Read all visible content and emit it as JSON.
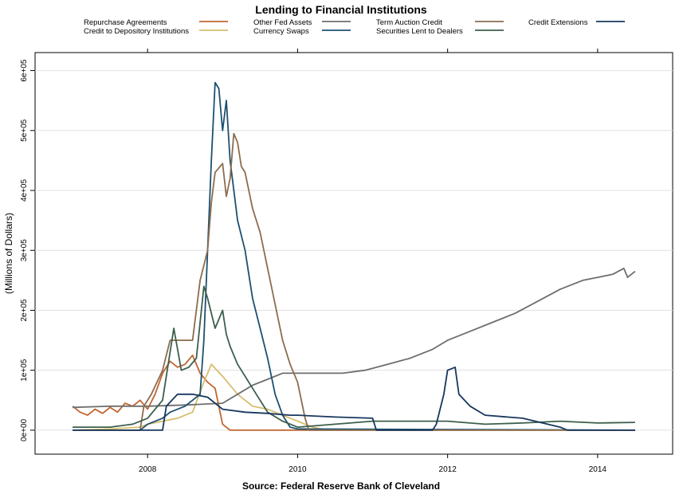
{
  "chart_data": {
    "type": "line",
    "title": "Lending to Financial Institutions",
    "xlabel": "Source: Federal Reserve Bank of Cleveland",
    "ylabel": "(Millions of Dollars)",
    "xlim": [
      2006.5,
      2015.0
    ],
    "ylim": [
      -40000,
      630000
    ],
    "x_ticks": [
      2008,
      2010,
      2012,
      2014
    ],
    "y_ticks": [
      0,
      100000,
      200000,
      300000,
      400000,
      500000,
      600000
    ],
    "y_tick_labels": [
      "0e+00",
      "1e+05",
      "2e+05",
      "3e+05",
      "4e+05",
      "5e+05",
      "6e+05"
    ],
    "grid": "horizontal",
    "legend_position": "top",
    "series": [
      {
        "name": "Repurchase Agreements",
        "color": "#c0652f",
        "points": [
          [
            2007.0,
            40000
          ],
          [
            2007.1,
            30000
          ],
          [
            2007.2,
            25000
          ],
          [
            2007.3,
            35000
          ],
          [
            2007.4,
            28000
          ],
          [
            2007.5,
            38000
          ],
          [
            2007.6,
            30000
          ],
          [
            2007.7,
            45000
          ],
          [
            2007.8,
            40000
          ],
          [
            2007.9,
            50000
          ],
          [
            2008.0,
            35000
          ],
          [
            2008.1,
            60000
          ],
          [
            2008.2,
            95000
          ],
          [
            2008.3,
            115000
          ],
          [
            2008.4,
            105000
          ],
          [
            2008.5,
            110000
          ],
          [
            2008.6,
            125000
          ],
          [
            2008.7,
            95000
          ],
          [
            2008.8,
            80000
          ],
          [
            2008.9,
            70000
          ],
          [
            2009.0,
            10000
          ],
          [
            2009.1,
            0
          ],
          [
            2014.5,
            0
          ]
        ]
      },
      {
        "name": "Credit to Depository Institutions",
        "color": "#d6be6e",
        "points": [
          [
            2007.0,
            0
          ],
          [
            2007.5,
            2000
          ],
          [
            2007.9,
            5000
          ],
          [
            2008.0,
            10000
          ],
          [
            2008.2,
            15000
          ],
          [
            2008.4,
            20000
          ],
          [
            2008.6,
            30000
          ],
          [
            2008.75,
            80000
          ],
          [
            2008.85,
            110000
          ],
          [
            2009.0,
            90000
          ],
          [
            2009.2,
            60000
          ],
          [
            2009.4,
            40000
          ],
          [
            2009.6,
            35000
          ],
          [
            2009.8,
            25000
          ],
          [
            2010.0,
            15000
          ],
          [
            2010.2,
            5000
          ],
          [
            2010.4,
            0
          ],
          [
            2014.5,
            0
          ]
        ]
      },
      {
        "name": "Other Fed Assets",
        "color": "#6e6e6e",
        "points": [
          [
            2007.0,
            38000
          ],
          [
            2007.5,
            40000
          ],
          [
            2008.0,
            40000
          ],
          [
            2008.5,
            42000
          ],
          [
            2009.0,
            45000
          ],
          [
            2009.2,
            60000
          ],
          [
            2009.4,
            75000
          ],
          [
            2009.6,
            85000
          ],
          [
            2009.8,
            95000
          ],
          [
            2010.0,
            95000
          ],
          [
            2010.3,
            95000
          ],
          [
            2010.6,
            95000
          ],
          [
            2010.9,
            100000
          ],
          [
            2011.2,
            110000
          ],
          [
            2011.5,
            120000
          ],
          [
            2011.8,
            135000
          ],
          [
            2012.0,
            150000
          ],
          [
            2012.3,
            165000
          ],
          [
            2012.6,
            180000
          ],
          [
            2012.9,
            195000
          ],
          [
            2013.2,
            215000
          ],
          [
            2013.5,
            235000
          ],
          [
            2013.8,
            250000
          ],
          [
            2014.0,
            255000
          ],
          [
            2014.2,
            260000
          ],
          [
            2014.35,
            270000
          ],
          [
            2014.4,
            255000
          ],
          [
            2014.5,
            265000
          ]
        ]
      },
      {
        "name": "Currency Swaps",
        "color": "#1e5070",
        "points": [
          [
            2007.0,
            0
          ],
          [
            2007.9,
            0
          ],
          [
            2008.0,
            10000
          ],
          [
            2008.2,
            20000
          ],
          [
            2008.3,
            30000
          ],
          [
            2008.5,
            40000
          ],
          [
            2008.7,
            60000
          ],
          [
            2008.75,
            150000
          ],
          [
            2008.85,
            450000
          ],
          [
            2008.9,
            580000
          ],
          [
            2008.95,
            570000
          ],
          [
            2009.0,
            500000
          ],
          [
            2009.05,
            550000
          ],
          [
            2009.1,
            450000
          ],
          [
            2009.15,
            400000
          ],
          [
            2009.2,
            350000
          ],
          [
            2009.3,
            300000
          ],
          [
            2009.4,
            220000
          ],
          [
            2009.5,
            170000
          ],
          [
            2009.6,
            120000
          ],
          [
            2009.7,
            60000
          ],
          [
            2009.8,
            25000
          ],
          [
            2009.9,
            5000
          ],
          [
            2010.0,
            2000
          ],
          [
            2014.5,
            0
          ]
        ]
      },
      {
        "name": "Term Auction Credit",
        "color": "#8b6d4f",
        "points": [
          [
            2007.0,
            0
          ],
          [
            2007.9,
            0
          ],
          [
            2007.95,
            40000
          ],
          [
            2008.05,
            60000
          ],
          [
            2008.2,
            100000
          ],
          [
            2008.3,
            150000
          ],
          [
            2008.6,
            150000
          ],
          [
            2008.7,
            250000
          ],
          [
            2008.8,
            300000
          ],
          [
            2008.85,
            380000
          ],
          [
            2008.9,
            430000
          ],
          [
            2009.0,
            445000
          ],
          [
            2009.05,
            390000
          ],
          [
            2009.1,
            420000
          ],
          [
            2009.15,
            495000
          ],
          [
            2009.2,
            480000
          ],
          [
            2009.25,
            440000
          ],
          [
            2009.3,
            430000
          ],
          [
            2009.4,
            370000
          ],
          [
            2009.5,
            330000
          ],
          [
            2009.6,
            270000
          ],
          [
            2009.7,
            210000
          ],
          [
            2009.8,
            150000
          ],
          [
            2009.9,
            110000
          ],
          [
            2010.0,
            80000
          ],
          [
            2010.05,
            50000
          ],
          [
            2010.1,
            20000
          ],
          [
            2010.15,
            0
          ],
          [
            2014.5,
            0
          ]
        ]
      },
      {
        "name": "Securities Lent to Dealers",
        "color": "#3c5f4b",
        "points": [
          [
            2007.0,
            5000
          ],
          [
            2007.5,
            5000
          ],
          [
            2007.8,
            10000
          ],
          [
            2008.0,
            20000
          ],
          [
            2008.2,
            50000
          ],
          [
            2008.35,
            170000
          ],
          [
            2008.45,
            100000
          ],
          [
            2008.55,
            105000
          ],
          [
            2008.65,
            120000
          ],
          [
            2008.75,
            240000
          ],
          [
            2008.8,
            220000
          ],
          [
            2008.9,
            170000
          ],
          [
            2009.0,
            200000
          ],
          [
            2009.05,
            160000
          ],
          [
            2009.1,
            140000
          ],
          [
            2009.2,
            110000
          ],
          [
            2009.3,
            90000
          ],
          [
            2009.4,
            70000
          ],
          [
            2009.6,
            30000
          ],
          [
            2009.8,
            15000
          ],
          [
            2010.0,
            5000
          ],
          [
            2010.5,
            10000
          ],
          [
            2011.0,
            15000
          ],
          [
            2011.5,
            15000
          ],
          [
            2012.0,
            15000
          ],
          [
            2012.5,
            10000
          ],
          [
            2013.0,
            12000
          ],
          [
            2013.5,
            15000
          ],
          [
            2014.0,
            12000
          ],
          [
            2014.5,
            13000
          ]
        ]
      },
      {
        "name": "Credit Extensions",
        "color": "#17375e",
        "points": [
          [
            2007.0,
            0
          ],
          [
            2008.2,
            0
          ],
          [
            2008.25,
            40000
          ],
          [
            2008.4,
            60000
          ],
          [
            2008.6,
            60000
          ],
          [
            2008.8,
            55000
          ],
          [
            2009.0,
            35000
          ],
          [
            2009.3,
            30000
          ],
          [
            2009.6,
            28000
          ],
          [
            2009.9,
            25000
          ],
          [
            2010.0,
            25000
          ],
          [
            2010.5,
            22000
          ],
          [
            2011.0,
            20000
          ],
          [
            2011.05,
            0
          ],
          [
            2011.8,
            0
          ],
          [
            2011.85,
            10000
          ],
          [
            2011.95,
            60000
          ],
          [
            2012.0,
            100000
          ],
          [
            2012.1,
            105000
          ],
          [
            2012.15,
            60000
          ],
          [
            2012.3,
            40000
          ],
          [
            2012.5,
            25000
          ],
          [
            2013.0,
            20000
          ],
          [
            2013.5,
            5000
          ],
          [
            2013.6,
            0
          ],
          [
            2014.5,
            0
          ]
        ]
      }
    ]
  }
}
